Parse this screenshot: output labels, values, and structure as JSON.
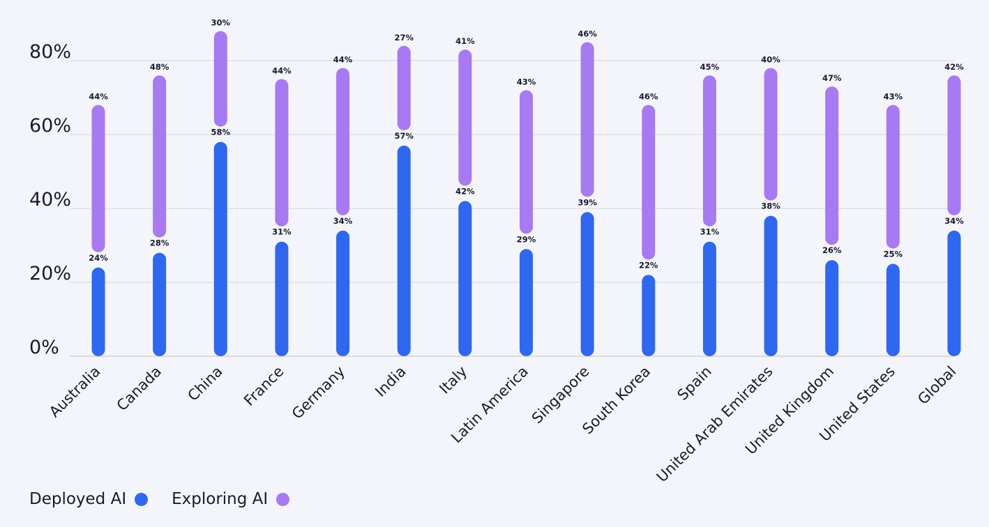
{
  "chart_data": {
    "type": "bar",
    "categories": [
      "Australia",
      "Canada",
      "China",
      "France",
      "Germany",
      "India",
      "Italy",
      "Latin America",
      "Singapore",
      "South Korea",
      "Spain",
      "United Arab Emirates",
      "United Kingdom",
      "United States",
      "Global"
    ],
    "series": [
      {
        "name": "Deployed AI",
        "color": "#2e68f0",
        "values": [
          24,
          28,
          58,
          31,
          34,
          57,
          42,
          29,
          39,
          22,
          31,
          38,
          26,
          25,
          34
        ],
        "labels": [
          "24%",
          "28%",
          "58%",
          "31%",
          "34%",
          "57%",
          "42%",
          "29%",
          "39%",
          "22%",
          "31%",
          "38%",
          "26%",
          "25%",
          "34%"
        ]
      },
      {
        "name": "Exploring AI",
        "color": "#a779f2",
        "values": [
          44,
          48,
          30,
          44,
          44,
          27,
          41,
          43,
          46,
          46,
          45,
          40,
          47,
          43,
          42
        ],
        "labels": [
          "44%",
          "48%",
          "30%",
          "44%",
          "44%",
          "27%",
          "41%",
          "43%",
          "46%",
          "46%",
          "45%",
          "40%",
          "47%",
          "43%",
          "42%"
        ]
      }
    ],
    "ylim": [
      0,
      80
    ],
    "yticks": [
      {
        "value": 0,
        "label": "0%"
      },
      {
        "value": 20,
        "label": "20%"
      },
      {
        "value": 40,
        "label": "40%"
      },
      {
        "value": 60,
        "label": "60%"
      },
      {
        "value": 80,
        "label": "80%"
      }
    ],
    "grid": true,
    "legend_position": "bottom-left"
  },
  "legend": {
    "deployed_label": "Deployed AI",
    "exploring_label": "Exploring AI"
  }
}
